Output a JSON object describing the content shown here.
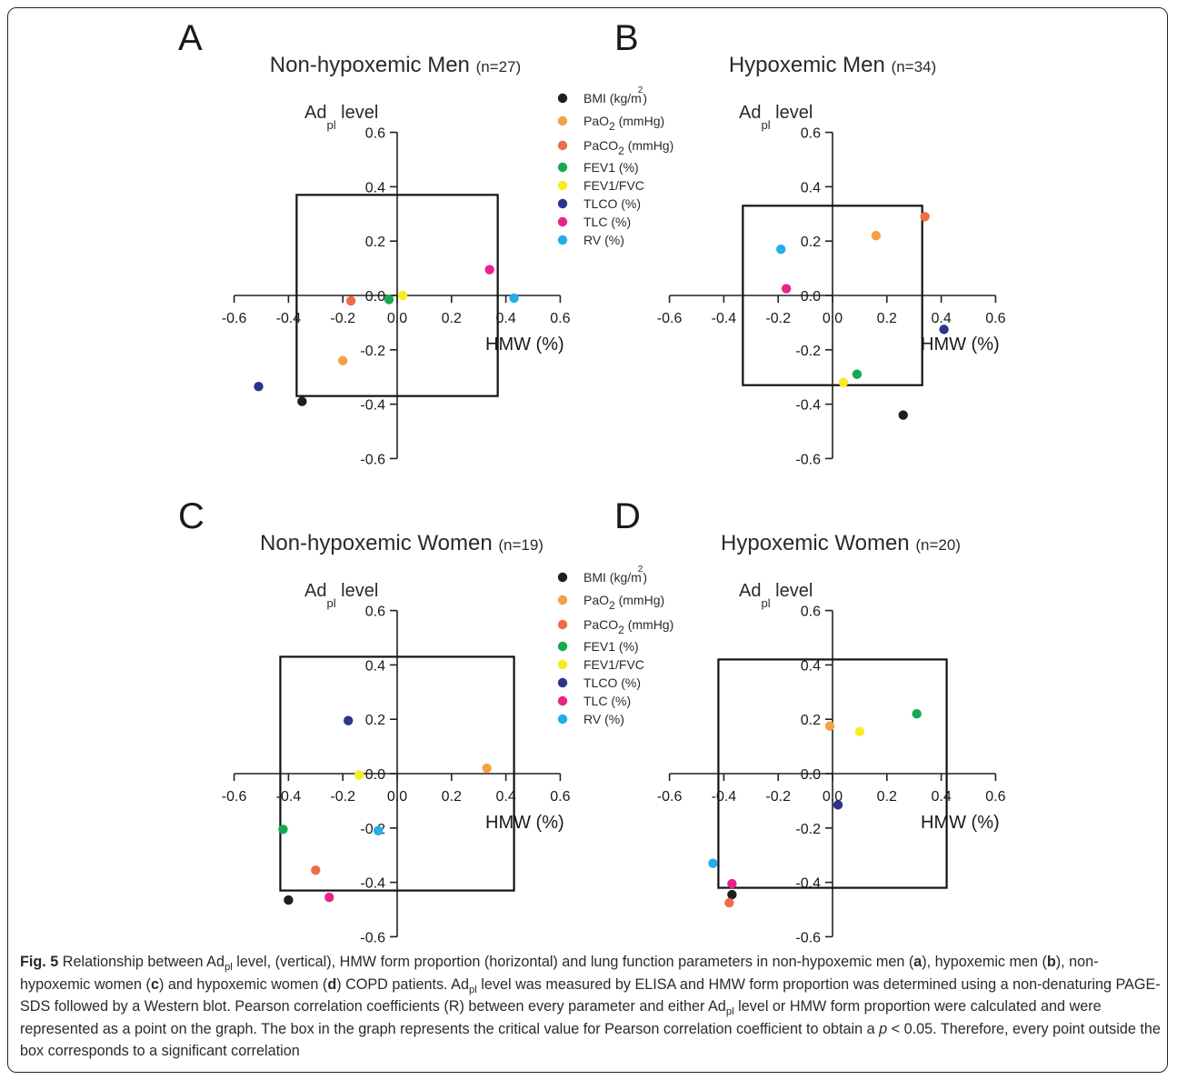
{
  "legend_items": [
    {
      "key": "bmi",
      "label": "BMI (kg/m",
      "sup": "2",
      "tail": ")",
      "color": "#1f1f1f"
    },
    {
      "key": "pao2",
      "label": "PaO",
      "sub": "2",
      "tail": " (mmHg)",
      "color": "#f5a045"
    },
    {
      "key": "paco2",
      "label": "PaCO",
      "sub": "2",
      "tail": " (mmHg)",
      "color": "#ef6c45"
    },
    {
      "key": "fev1",
      "label": "FEV1 (%)",
      "color": "#16a853"
    },
    {
      "key": "fev1fvc",
      "label": "FEV1/FVC",
      "color": "#f7ec22"
    },
    {
      "key": "tlco",
      "label": "TLCO (%)",
      "color": "#2e338f"
    },
    {
      "key": "tlc",
      "label": "TLC (%)",
      "color": "#e8238c"
    },
    {
      "key": "rv",
      "label": "RV (%)",
      "color": "#22aee8"
    }
  ],
  "axis_text": {
    "ylabel_main": "Ad",
    "ylabel_sub": "pl",
    "ylabel_tail": " level",
    "xlabel": "HMW (%)",
    "xticks": [
      "-0.6",
      "-0.4",
      "-0.2",
      "0.0",
      "0.2",
      "0.4",
      "0.6"
    ],
    "yticks": [
      "0.6",
      "0.4",
      "0.2",
      "0.0",
      "-0.2",
      "-0.4",
      "-0.6"
    ]
  },
  "chart_data": [
    {
      "panel": "A",
      "type": "scatter",
      "title": "Non-hypoxemic Men",
      "n": "(n=27)",
      "xlabel": "HMW (%)",
      "ylabel": "Adpl level",
      "xlim": [
        -0.6,
        0.6
      ],
      "ylim": [
        -0.6,
        0.6
      ],
      "box": 0.37,
      "legend": "right",
      "points": [
        {
          "key": "bmi",
          "x": -0.35,
          "y": -0.39
        },
        {
          "key": "pao2",
          "x": -0.2,
          "y": -0.24
        },
        {
          "key": "paco2",
          "x": -0.17,
          "y": -0.02
        },
        {
          "key": "fev1",
          "x": -0.03,
          "y": -0.015
        },
        {
          "key": "fev1fvc",
          "x": 0.02,
          "y": 0.0
        },
        {
          "key": "tlco",
          "x": -0.51,
          "y": -0.335
        },
        {
          "key": "tlc",
          "x": 0.34,
          "y": 0.095
        },
        {
          "key": "rv",
          "x": 0.43,
          "y": -0.01
        }
      ]
    },
    {
      "panel": "B",
      "type": "scatter",
      "title": "Hypoxemic Men",
      "n": "(n=34)",
      "xlabel": "HMW (%)",
      "ylabel": "Adpl level",
      "xlim": [
        -0.6,
        0.6
      ],
      "ylim": [
        -0.6,
        0.6
      ],
      "box": 0.33,
      "points": [
        {
          "key": "bmi",
          "x": 0.26,
          "y": -0.44
        },
        {
          "key": "pao2",
          "x": 0.16,
          "y": 0.22
        },
        {
          "key": "paco2",
          "x": 0.34,
          "y": 0.29
        },
        {
          "key": "fev1",
          "x": 0.09,
          "y": -0.29
        },
        {
          "key": "fev1fvc",
          "x": 0.04,
          "y": -0.32
        },
        {
          "key": "tlco",
          "x": 0.41,
          "y": -0.125
        },
        {
          "key": "tlc",
          "x": -0.17,
          "y": 0.025
        },
        {
          "key": "rv",
          "x": -0.19,
          "y": 0.17
        }
      ]
    },
    {
      "panel": "C",
      "type": "scatter",
      "title": "Non-hypoxemic Women",
      "n": "(n=19)",
      "xlabel": "HMW (%)",
      "ylabel": "Adpl level",
      "xlim": [
        -0.6,
        0.6
      ],
      "ylim": [
        -0.6,
        0.6
      ],
      "box": 0.43,
      "legend": "right",
      "points": [
        {
          "key": "bmi",
          "x": -0.4,
          "y": -0.465
        },
        {
          "key": "pao2",
          "x": 0.33,
          "y": 0.02
        },
        {
          "key": "paco2",
          "x": -0.3,
          "y": -0.355
        },
        {
          "key": "fev1",
          "x": -0.42,
          "y": -0.205
        },
        {
          "key": "fev1fvc",
          "x": -0.14,
          "y": -0.005
        },
        {
          "key": "tlco",
          "x": -0.18,
          "y": 0.195
        },
        {
          "key": "tlc",
          "x": -0.25,
          "y": -0.455
        },
        {
          "key": "rv",
          "x": -0.07,
          "y": -0.21
        }
      ]
    },
    {
      "panel": "D",
      "type": "scatter",
      "title": "Hypoxemic Women",
      "n": "(n=20)",
      "xlabel": "HMW (%)",
      "ylabel": "Adpl level",
      "xlim": [
        -0.6,
        0.6
      ],
      "ylim": [
        -0.6,
        0.6
      ],
      "box": 0.42,
      "points": [
        {
          "key": "bmi",
          "x": -0.37,
          "y": -0.445
        },
        {
          "key": "pao2",
          "x": -0.01,
          "y": 0.175
        },
        {
          "key": "paco2",
          "x": -0.38,
          "y": -0.475
        },
        {
          "key": "fev1",
          "x": 0.31,
          "y": 0.22
        },
        {
          "key": "fev1fvc",
          "x": 0.1,
          "y": 0.155
        },
        {
          "key": "tlco",
          "x": 0.02,
          "y": -0.115
        },
        {
          "key": "tlc",
          "x": -0.37,
          "y": -0.405
        },
        {
          "key": "rv",
          "x": -0.44,
          "y": -0.33
        }
      ]
    }
  ],
  "caption": {
    "fig_label": "Fig. 5",
    "segments": [
      {
        "t": " Relationship between Ad"
      },
      {
        "t": "pl",
        "sub": true
      },
      {
        "t": " level, (vertical), HMW form proportion (horizontal) and lung function parameters in non-hypoxemic men ("
      },
      {
        "t": "a",
        "b": true
      },
      {
        "t": "), hypoxemic men ("
      },
      {
        "t": "b",
        "b": true
      },
      {
        "t": "), non-hypoxemic women ("
      },
      {
        "t": "c",
        "b": true
      },
      {
        "t": ") and hypoxemic women ("
      },
      {
        "t": "d",
        "b": true
      },
      {
        "t": ") COPD patients. Ad"
      },
      {
        "t": "pl",
        "sub": true
      },
      {
        "t": " level was measured by ELISA and HMW form proportion was determined using a non-denaturing PAGE-SDS followed by a Western blot. Pearson correlation coefficients (R) between every parameter and either Ad"
      },
      {
        "t": "pl",
        "sub": true
      },
      {
        "t": " level or HMW form proportion were calculated and were represented as a point on the graph. The box in the graph represents the critical value for Pearson correlation coefficient to obtain a "
      },
      {
        "t": "p",
        "i": true
      },
      {
        "t": " < 0.05. Therefore, every point outside the box corresponds to a significant correlation"
      }
    ]
  }
}
